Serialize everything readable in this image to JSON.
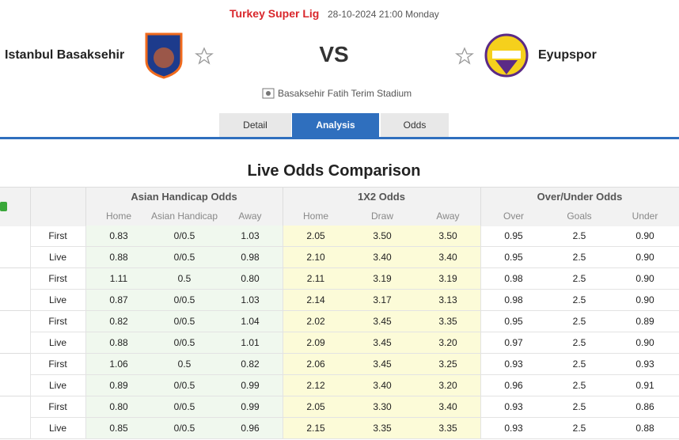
{
  "header": {
    "league": "Turkey Super Lig",
    "datetime": "28-10-2024 21:00 Monday",
    "home_team": "Istanbul Basaksehir",
    "vs": "VS",
    "away_team": "Eyupspor",
    "venue": "Basaksehir Fatih Terim Stadium"
  },
  "tabs": [
    "Detail",
    "Analysis",
    "Odds"
  ],
  "section_title": "Live Odds Comparison",
  "table": {
    "group_headers": [
      "Asian Handicap Odds",
      "1X2 Odds",
      "Over/Under Odds"
    ],
    "sub_headers": [
      "Home",
      "Asian Handicap",
      "Away",
      "Home",
      "Draw",
      "Away",
      "Over",
      "Goals",
      "Under"
    ],
    "rows": [
      {
        "label": "First",
        "values": [
          "0.83",
          "0/0.5",
          "1.03",
          "2.05",
          "3.50",
          "3.50",
          "0.95",
          "2.5",
          "0.90"
        ]
      },
      {
        "label": "Live",
        "values": [
          "0.88",
          "0/0.5",
          "0.98",
          "2.10",
          "3.40",
          "3.40",
          "0.95",
          "2.5",
          "0.90"
        ]
      },
      {
        "label": "First",
        "values": [
          "1.11",
          "0.5",
          "0.80",
          "2.11",
          "3.19",
          "3.19",
          "0.98",
          "2.5",
          "0.90"
        ]
      },
      {
        "label": "Live",
        "values": [
          "0.87",
          "0/0.5",
          "1.03",
          "2.14",
          "3.17",
          "3.13",
          "0.98",
          "2.5",
          "0.90"
        ]
      },
      {
        "label": "First",
        "values": [
          "0.82",
          "0/0.5",
          "1.04",
          "2.02",
          "3.45",
          "3.35",
          "0.95",
          "2.5",
          "0.89"
        ]
      },
      {
        "label": "Live",
        "values": [
          "0.88",
          "0/0.5",
          "1.01",
          "2.09",
          "3.45",
          "3.20",
          "0.97",
          "2.5",
          "0.90"
        ]
      },
      {
        "label": "First",
        "values": [
          "1.06",
          "0.5",
          "0.82",
          "2.06",
          "3.45",
          "3.25",
          "0.93",
          "2.5",
          "0.93"
        ]
      },
      {
        "label": "Live",
        "values": [
          "0.89",
          "0/0.5",
          "0.99",
          "2.12",
          "3.40",
          "3.20",
          "0.96",
          "2.5",
          "0.91"
        ]
      },
      {
        "label": "First",
        "values": [
          "0.80",
          "0/0.5",
          "0.99",
          "2.05",
          "3.30",
          "3.40",
          "0.93",
          "2.5",
          "0.86"
        ]
      },
      {
        "label": "Live",
        "values": [
          "0.85",
          "0/0.5",
          "0.96",
          "2.15",
          "3.35",
          "3.35",
          "0.93",
          "2.5",
          "0.88"
        ]
      }
    ]
  }
}
